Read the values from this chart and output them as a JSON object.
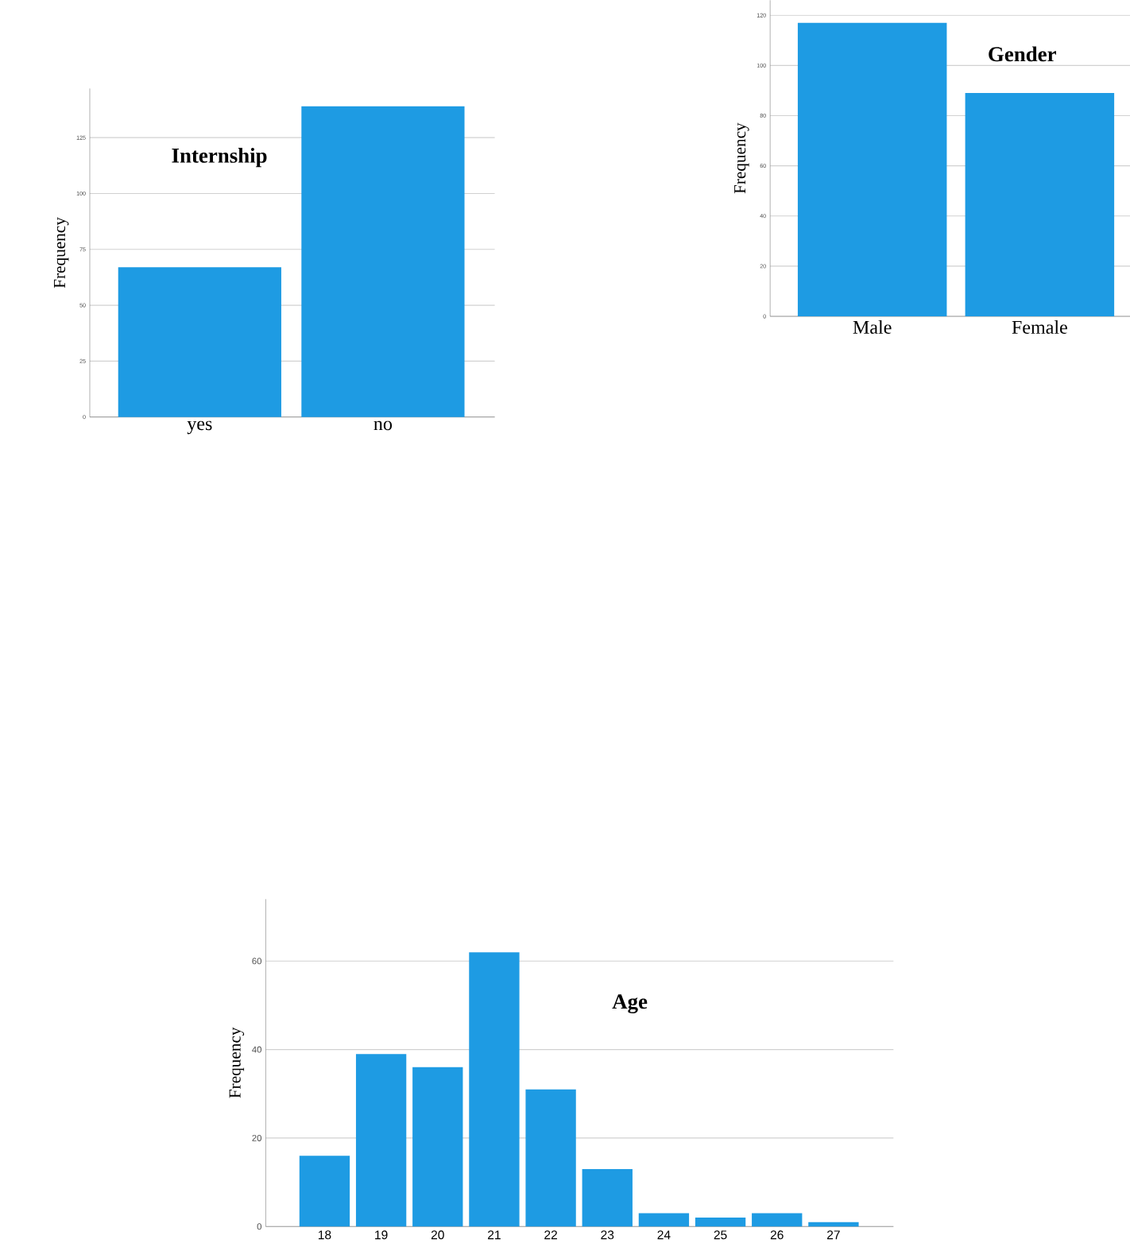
{
  "chart_data": [
    {
      "type": "bar",
      "title": "Internship",
      "ylabel": "Frequency",
      "categories": [
        "yes",
        "no"
      ],
      "values": [
        67,
        139
      ],
      "color": "#1e9be3",
      "ylim": [
        0,
        147
      ],
      "yticks": [
        0,
        25,
        50,
        75,
        100,
        125
      ],
      "grid": "y"
    },
    {
      "type": "bar",
      "title": "Gender",
      "ylabel": "Frequency",
      "categories": [
        "Male",
        "Female"
      ],
      "values": [
        117,
        89
      ],
      "color": "#1e9be3",
      "ylim": [
        0,
        126
      ],
      "yticks": [
        0,
        20,
        40,
        60,
        80,
        100,
        120
      ],
      "grid": "y"
    },
    {
      "type": "bar",
      "title": "Age",
      "ylabel": "Frequency",
      "categories": [
        "18",
        "19",
        "20",
        "21",
        "22",
        "23",
        "24",
        "25",
        "26",
        "27"
      ],
      "values": [
        16,
        39,
        36,
        62,
        31,
        13,
        3,
        2,
        3,
        1
      ],
      "color": "#1e9be3",
      "ylim": [
        0,
        74
      ],
      "yticks": [
        0,
        20,
        40,
        60
      ],
      "grid": "y"
    }
  ]
}
